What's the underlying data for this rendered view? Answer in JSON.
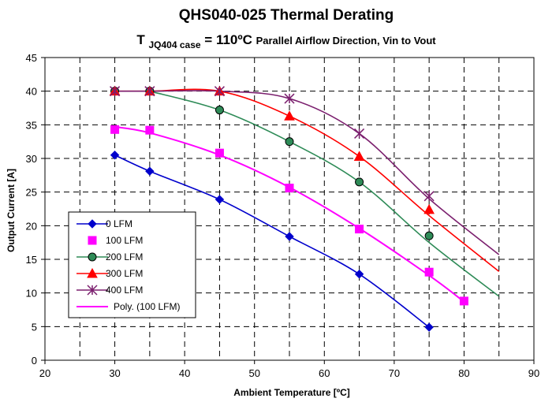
{
  "chart_data": {
    "type": "line",
    "title": "QHS040-025 Thermal Derating",
    "subtitle": {
      "main": "T",
      "subscript": "JQ404 case",
      "value": " = 110ºC",
      "note": " Parallel Airflow Direction,  Vin to Vout"
    },
    "xlabel": "Ambient Temperature [ºC]",
    "ylabel": "Output Current [A]",
    "xlim": [
      20,
      90
    ],
    "ylim": [
      0,
      45
    ],
    "xticks": [
      20,
      30,
      40,
      50,
      60,
      70,
      80,
      90
    ],
    "yticks": [
      0,
      5,
      10,
      15,
      20,
      25,
      30,
      35,
      40,
      45
    ],
    "grid": "dashed",
    "legend_position": "left-bottom",
    "series": [
      {
        "name": "0 LFM",
        "color": "#0000cc",
        "marker": "diamond",
        "x": [
          30,
          35,
          45,
          55,
          65,
          75
        ],
        "y": [
          30.5,
          28.1,
          23.9,
          18.4,
          12.8,
          4.9
        ],
        "line": "smooth-through-points"
      },
      {
        "name": "100 LFM",
        "color": "#ff00ff",
        "marker": "square",
        "x": [
          30,
          35,
          45,
          55,
          65,
          75,
          80
        ],
        "y": [
          34.3,
          34.2,
          30.8,
          25.6,
          19.5,
          13.1,
          8.8
        ],
        "line": "none"
      },
      {
        "name": "200 LFM",
        "color": "#2e8b57",
        "marker": "circle",
        "x": [
          30,
          35,
          45,
          55,
          65,
          75
        ],
        "y": [
          40.0,
          40.0,
          37.2,
          32.5,
          26.5,
          18.5
        ],
        "line": "trend",
        "trend_x": [
          35,
          45,
          55,
          65,
          75,
          85
        ],
        "trend_y": [
          40.0,
          37.2,
          32.5,
          26.5,
          17.5,
          9.5
        ]
      },
      {
        "name": "300 LFM",
        "color": "#ff0000",
        "marker": "triangle",
        "x": [
          30,
          35,
          45,
          55,
          65,
          75
        ],
        "y": [
          40.0,
          40.0,
          40.0,
          36.3,
          30.3,
          22.4
        ],
        "line": "trend",
        "trend_x": [
          30,
          35,
          45,
          55,
          65,
          75,
          85
        ],
        "trend_y": [
          40.0,
          40.0,
          40.0,
          36.3,
          30.3,
          21.5,
          13.2
        ]
      },
      {
        "name": "400 LFM",
        "color": "#7b1f6e",
        "marker": "star",
        "x": [
          30,
          35,
          45,
          55,
          65,
          75
        ],
        "y": [
          40.0,
          40.0,
          40.0,
          38.9,
          33.7,
          24.4
        ],
        "line": "trend",
        "trend_x": [
          30,
          35,
          45,
          55,
          65,
          75,
          85
        ],
        "trend_y": [
          40.0,
          40.0,
          40.0,
          38.9,
          33.7,
          24.0,
          15.7
        ]
      },
      {
        "name": "Poly. (100 LFM)",
        "color": "#ff00ff",
        "marker": "none",
        "x": [
          30,
          35,
          45,
          55,
          65,
          75,
          80
        ],
        "y": [
          34.7,
          33.8,
          30.5,
          25.7,
          19.6,
          12.6,
          8.7
        ],
        "line": "smooth"
      }
    ]
  }
}
